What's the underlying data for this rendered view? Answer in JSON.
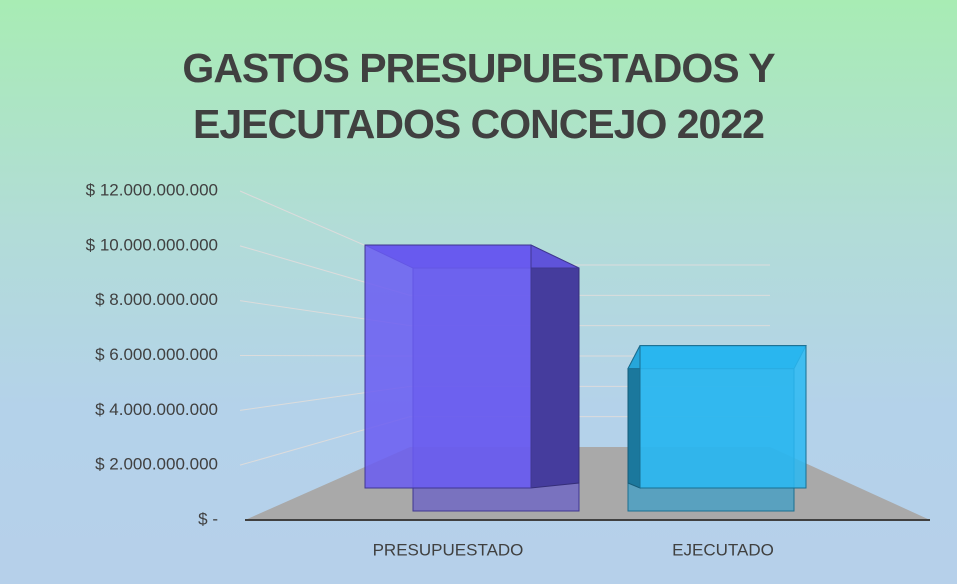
{
  "chart_data": {
    "type": "bar3d",
    "title": "GASTOS PRESUPUESTADOS Y EJECUTADOS CONCEJO 2022",
    "categories": [
      "PRESUPUESTADO",
      "EJECUTADO"
    ],
    "values": [
      9900000000,
      5800000000
    ],
    "colors": [
      "#6a5cf2",
      "#2ab8f2"
    ],
    "ylim": [
      0,
      12000000000
    ],
    "yticks": [
      {
        "value": 0,
        "label": "$ -"
      },
      {
        "value": 2000000000,
        "label": "$ 2.000.000.000"
      },
      {
        "value": 4000000000,
        "label": "$ 4.000.000.000"
      },
      {
        "value": 6000000000,
        "label": "$ 6.000.000.000"
      },
      {
        "value": 8000000000,
        "label": "$ 8.000.000.000"
      },
      {
        "value": 10000000000,
        "label": "$ 10.000.000.000"
      },
      {
        "value": 12000000000,
        "label": "$ 12.000.000.000"
      }
    ],
    "grid": true
  }
}
